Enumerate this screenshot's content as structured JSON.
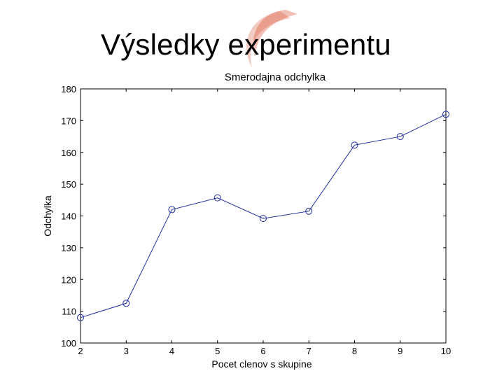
{
  "slide": {
    "title": "Výsledky experimentu",
    "accent_color": "#d9472b"
  },
  "chart_data": {
    "type": "line",
    "title": "Smerodajna odchylka",
    "xlabel": "Pocet clenov s skupine",
    "ylabel": "Odchylka",
    "xlim": [
      2,
      10
    ],
    "ylim": [
      100,
      180
    ],
    "xticks": [
      2,
      3,
      4,
      5,
      6,
      7,
      8,
      9,
      10
    ],
    "yticks": [
      100,
      110,
      120,
      130,
      140,
      150,
      160,
      170,
      180
    ],
    "grid": false,
    "series": [
      {
        "color": "#1f2fa0",
        "marker": "circle",
        "x": [
          2,
          3,
          4,
          5,
          6,
          7,
          8,
          9,
          10
        ],
        "y": [
          108,
          112.5,
          142,
          145.7,
          139.2,
          141.5,
          162.3,
          165,
          172
        ]
      }
    ]
  }
}
